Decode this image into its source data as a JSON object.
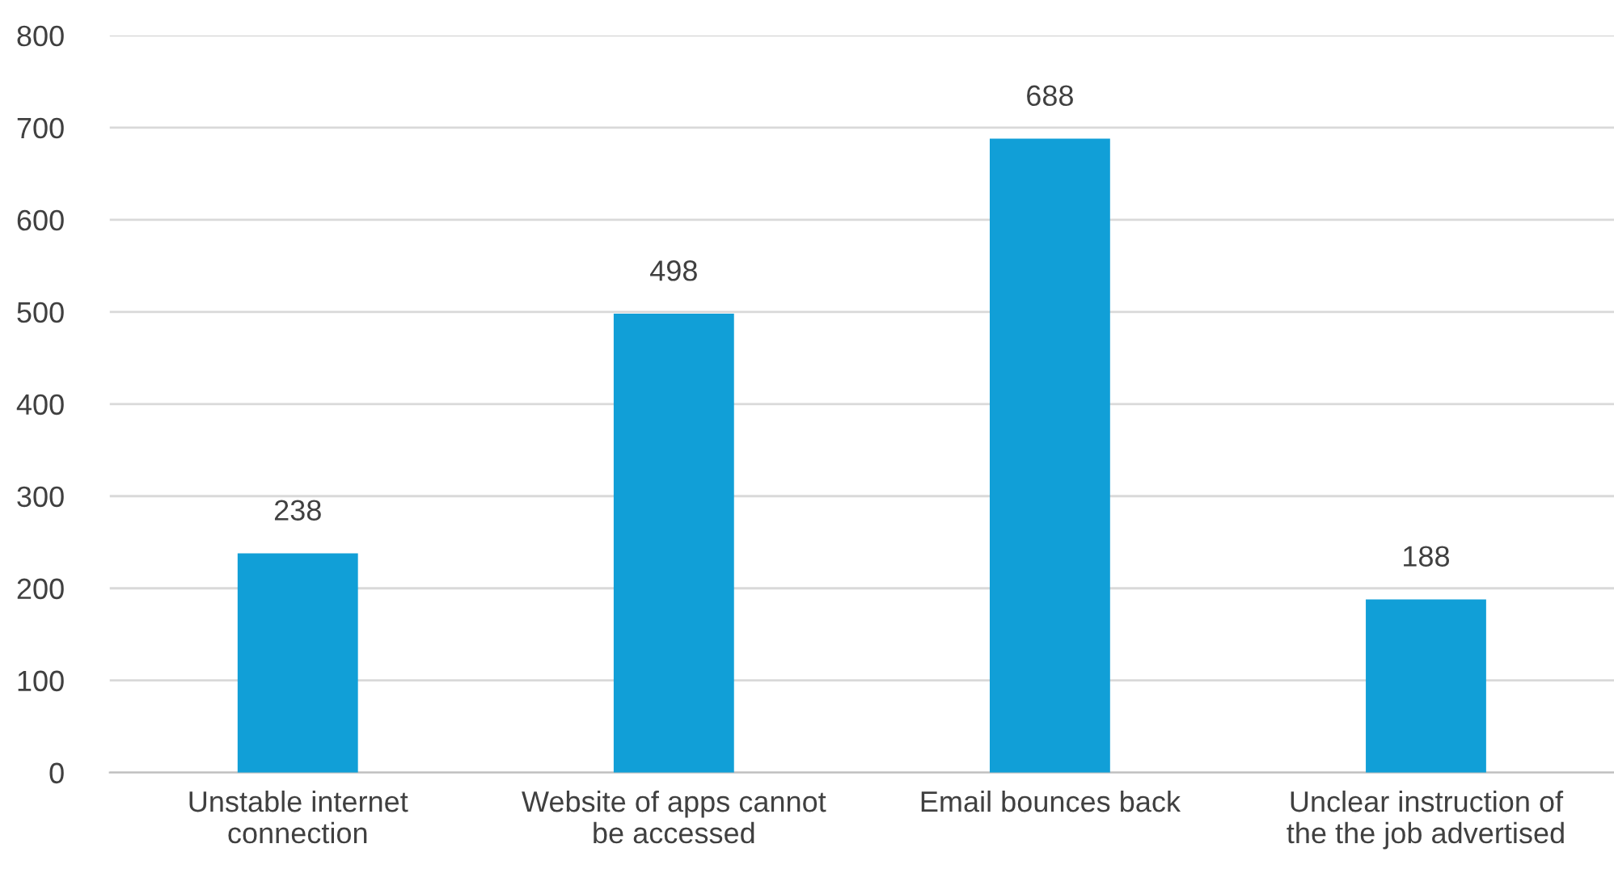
{
  "chart_data": {
    "type": "bar",
    "categories": [
      "Unstable internet\nconnection",
      "Website of apps cannot\nbe accessed",
      "Email bounces back",
      "Unclear instruction of\nthe the job advertised"
    ],
    "values": [
      238,
      498,
      688,
      188
    ],
    "color": "#119fd7",
    "ylim": [
      0,
      800
    ],
    "yticks": [
      0,
      100,
      200,
      300,
      400,
      500,
      600,
      700,
      800
    ],
    "grid": "y",
    "data_labels": true
  }
}
